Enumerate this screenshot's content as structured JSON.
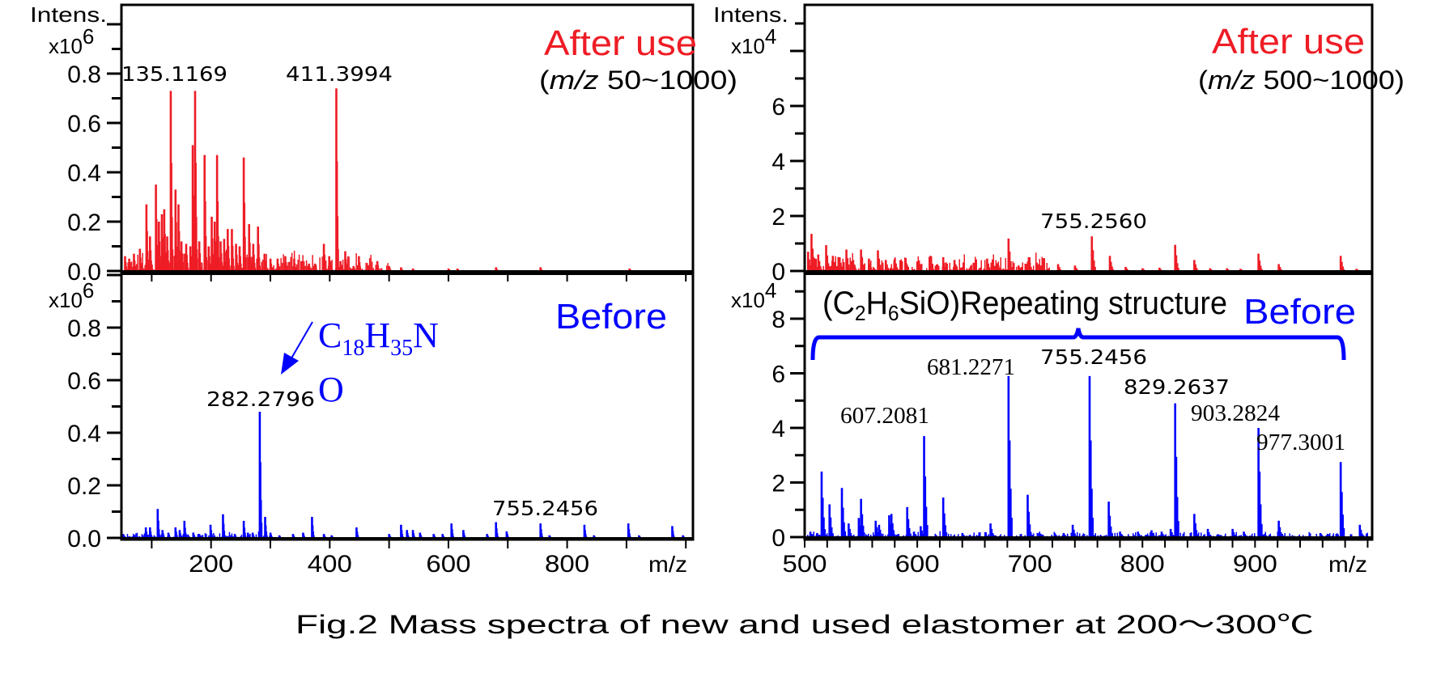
{
  "caption": "Fig.2 Mass spectra of new and used elastomer at 200～300℃",
  "colors": {
    "after": "#ee1c25",
    "before": "#0000ff",
    "axis": "#000000"
  },
  "labels": {
    "intens": "Intens.",
    "x10": "x10",
    "exp6": "6",
    "exp4": "4",
    "mz": "m/z",
    "after_use": "After use",
    "before": "Before",
    "range_left_open": "(",
    "range_mz": "m/z",
    "range_left_rest": " 50~1000)",
    "range_right_rest": " 500~1000)",
    "formula_c": "C",
    "formula_18": "18",
    "formula_h": "H",
    "formula_35": "35",
    "formula_n": "N",
    "formula_o": "O",
    "repeat_open": "(C",
    "repeat_2": "2",
    "repeat_h": "H",
    "repeat_6": "6",
    "repeat_rest": "SiO)Repeating structure"
  },
  "chart_data": [
    {
      "type": "bar",
      "panel": "top-left",
      "title": "After use",
      "subtitle": "(m/z 50~1000)",
      "xlabel": "m/z",
      "ylabel": "Intens. x10^6",
      "xlim": [
        49,
        1012
      ],
      "ylim": [
        0,
        1.0
      ],
      "x_ticks": [
        100,
        200,
        300,
        400,
        500,
        600,
        700,
        800,
        900,
        1000
      ],
      "x_tick_labels": [],
      "y_ticks": [
        0,
        0.1,
        0.2,
        0.3,
        0.4,
        0.5,
        0.6,
        0.7,
        0.8,
        0.9,
        1.0
      ],
      "y_tick_labels": [
        {
          "v": 0,
          "t": "0.0"
        },
        {
          "v": 0.2,
          "t": "0.2"
        },
        {
          "v": 0.4,
          "t": "0.4"
        },
        {
          "v": 0.6,
          "t": "0.6"
        },
        {
          "v": 0.8,
          "t": "0.8"
        }
      ],
      "color": "#ee1c25",
      "noise_level": 0.04,
      "noise_range": [
        55,
        500
      ],
      "peaks": [
        [
          55,
          0.06
        ],
        [
          62,
          0.05
        ],
        [
          70,
          0.07
        ],
        [
          80,
          0.09
        ],
        [
          91,
          0.27
        ],
        [
          97,
          0.14
        ],
        [
          107,
          0.35
        ],
        [
          112,
          0.2
        ],
        [
          117,
          0.23
        ],
        [
          121,
          0.25
        ],
        [
          126,
          0.14
        ],
        [
          132,
          0.73
        ],
        [
          140,
          0.33
        ],
        [
          145,
          0.27
        ],
        [
          150,
          0.12
        ],
        [
          158,
          0.11
        ],
        [
          165,
          0.1
        ],
        [
          169,
          0.51
        ],
        [
          173,
          0.73
        ],
        [
          180,
          0.12
        ],
        [
          189,
          0.47
        ],
        [
          196,
          0.1
        ],
        [
          201,
          0.22
        ],
        [
          206,
          0.2
        ],
        [
          210,
          0.47
        ],
        [
          216,
          0.12
        ],
        [
          222,
          0.13
        ],
        [
          228,
          0.17
        ],
        [
          235,
          0.17
        ],
        [
          242,
          0.11
        ],
        [
          248,
          0.1
        ],
        [
          255,
          0.46
        ],
        [
          264,
          0.19
        ],
        [
          271,
          0.11
        ],
        [
          279,
          0.18
        ],
        [
          290,
          0.07
        ],
        [
          300,
          0.05
        ],
        [
          312,
          0.05
        ],
        [
          325,
          0.06
        ],
        [
          340,
          0.05
        ],
        [
          352,
          0.04
        ],
        [
          365,
          0.03
        ],
        [
          375,
          0.03
        ],
        [
          390,
          0.11
        ],
        [
          399,
          0.06
        ],
        [
          411,
          0.74
        ],
        [
          418,
          0.04
        ],
        [
          426,
          0.08
        ],
        [
          440,
          0.02
        ],
        [
          449,
          0.06
        ],
        [
          465,
          0.02
        ],
        [
          480,
          0.04
        ],
        [
          500,
          0.02
        ],
        [
          520,
          0.015
        ],
        [
          540,
          0.01
        ],
        [
          600,
          0.01
        ],
        [
          615,
          0.01
        ],
        [
          680,
          0.015
        ],
        [
          755,
          0.015
        ],
        [
          905,
          0.01
        ]
      ],
      "annotations": [
        {
          "mz": 135.1169,
          "text": "135.1169"
        },
        {
          "mz": 411.3994,
          "text": "411.3994"
        }
      ]
    },
    {
      "type": "bar",
      "panel": "bottom-left",
      "title": "Before",
      "xlabel": "m/z",
      "ylabel": "x10^6",
      "xlim": [
        49,
        1012
      ],
      "ylim": [
        0,
        1.0
      ],
      "x_ticks": [
        100,
        200,
        300,
        400,
        500,
        600,
        700,
        800,
        900,
        1000
      ],
      "x_tick_labels": [
        {
          "v": 200,
          "t": "200"
        },
        {
          "v": 400,
          "t": "400"
        },
        {
          "v": 600,
          "t": "600"
        },
        {
          "v": 800,
          "t": "800"
        }
      ],
      "y_ticks": [
        0,
        0.1,
        0.2,
        0.3,
        0.4,
        0.5,
        0.6,
        0.7,
        0.8,
        0.9,
        1.0
      ],
      "y_tick_labels": [
        {
          "v": 0,
          "t": "0.0"
        },
        {
          "v": 0.2,
          "t": "0.2"
        },
        {
          "v": 0.4,
          "t": "0.4"
        },
        {
          "v": 0.6,
          "t": "0.6"
        },
        {
          "v": 0.8,
          "t": "0.8"
        }
      ],
      "color": "#0000ff",
      "noise_level": 0.012,
      "noise_range": [
        52,
        300
      ],
      "peaks": [
        [
          52,
          0.015
        ],
        [
          70,
          0.01
        ],
        [
          90,
          0.04
        ],
        [
          97,
          0.04
        ],
        [
          110,
          0.11
        ],
        [
          118,
          0.03
        ],
        [
          128,
          0.02
        ],
        [
          140,
          0.04
        ],
        [
          147,
          0.03
        ],
        [
          155,
          0.065
        ],
        [
          170,
          0.02
        ],
        [
          180,
          0.015
        ],
        [
          199,
          0.05
        ],
        [
          220,
          0.09
        ],
        [
          240,
          0.015
        ],
        [
          255,
          0.065
        ],
        [
          262,
          0.02
        ],
        [
          270,
          0.02
        ],
        [
          282,
          0.48
        ],
        [
          291,
          0.08
        ],
        [
          300,
          0.02
        ],
        [
          315,
          0.01
        ],
        [
          338,
          0.015
        ],
        [
          355,
          0.02
        ],
        [
          370,
          0.08
        ],
        [
          390,
          0.015
        ],
        [
          403,
          0.01
        ],
        [
          445,
          0.04
        ],
        [
          500,
          0.015
        ],
        [
          520,
          0.05
        ],
        [
          530,
          0.03
        ],
        [
          540,
          0.03
        ],
        [
          552,
          0.02
        ],
        [
          575,
          0.015
        ],
        [
          590,
          0.015
        ],
        [
          605,
          0.055
        ],
        [
          625,
          0.03
        ],
        [
          665,
          0.015
        ],
        [
          680,
          0.06
        ],
        [
          698,
          0.025
        ],
        [
          755,
          0.055
        ],
        [
          770,
          0.01
        ],
        [
          829,
          0.05
        ],
        [
          845,
          0.01
        ],
        [
          903,
          0.055
        ],
        [
          921,
          0.01
        ],
        [
          977,
          0.045
        ],
        [
          995,
          0.01
        ]
      ],
      "annotations": [
        {
          "mz": 282.2796,
          "text": "282.2796"
        },
        {
          "mz": 755.2456,
          "text": "755.2456"
        }
      ]
    },
    {
      "type": "bar",
      "panel": "top-right",
      "title": "After use",
      "subtitle": "(m/z 500~1000)",
      "xlabel": "m/z",
      "ylabel": "Intens. x10^4",
      "xlim": [
        500,
        1004
      ],
      "ylim": [
        0,
        9
      ],
      "x_ticks": [],
      "x_tick_labels": [],
      "y_ticks": [
        0,
        1,
        2,
        3,
        4,
        5,
        6,
        7,
        8,
        9
      ],
      "y_tick_labels": [
        {
          "v": 0,
          "t": "0"
        },
        {
          "v": 2,
          "t": "2"
        },
        {
          "v": 4,
          "t": "4"
        },
        {
          "v": 6,
          "t": "6"
        }
      ],
      "color": "#ee1c25",
      "noise_level": 0.35,
      "noise_range": [
        500,
        720
      ],
      "peaks": [
        [
          503,
          0.7
        ],
        [
          506,
          1.35
        ],
        [
          512,
          0.6
        ],
        [
          519,
          0.94
        ],
        [
          525,
          0.55
        ],
        [
          531,
          0.5
        ],
        [
          537,
          0.78
        ],
        [
          543,
          0.4
        ],
        [
          550,
          0.78
        ],
        [
          557,
          0.45
        ],
        [
          565,
          0.75
        ],
        [
          572,
          0.4
        ],
        [
          580,
          0.45
        ],
        [
          590,
          0.3
        ],
        [
          600,
          0.35
        ],
        [
          612,
          0.3
        ],
        [
          623,
          0.5
        ],
        [
          633,
          0.4
        ],
        [
          650,
          0.3
        ],
        [
          662,
          0.45
        ],
        [
          672,
          0.2
        ],
        [
          681,
          1.18
        ],
        [
          690,
          0.2
        ],
        [
          699,
          0.5
        ],
        [
          710,
          0.2
        ],
        [
          725,
          0.25
        ],
        [
          740,
          0.2
        ],
        [
          755,
          1.26
        ],
        [
          771,
          0.55
        ],
        [
          785,
          0.15
        ],
        [
          800,
          0.1
        ],
        [
          815,
          0.12
        ],
        [
          829,
          0.95
        ],
        [
          846,
          0.4
        ],
        [
          860,
          0.1
        ],
        [
          875,
          0.1
        ],
        [
          887,
          0.08
        ],
        [
          903,
          0.63
        ],
        [
          921,
          0.25
        ],
        [
          976,
          0.55
        ],
        [
          990,
          0.08
        ]
      ],
      "annotations": [
        {
          "mz": 755.256,
          "text": "755.2560"
        }
      ]
    },
    {
      "type": "bar",
      "panel": "bottom-right",
      "title": "Before",
      "xlabel": "m/z",
      "ylabel": "x10^4",
      "xlim": [
        500,
        1004
      ],
      "ylim": [
        0,
        9
      ],
      "x_ticks": [
        500,
        520,
        540,
        560,
        580,
        600,
        620,
        640,
        660,
        680,
        700,
        720,
        740,
        760,
        780,
        800,
        820,
        840,
        860,
        880,
        900,
        920,
        940,
        960,
        980,
        1000
      ],
      "x_tick_labels": [
        {
          "v": 500,
          "t": "500"
        },
        {
          "v": 600,
          "t": "600"
        },
        {
          "v": 700,
          "t": "700"
        },
        {
          "v": 800,
          "t": "800"
        },
        {
          "v": 900,
          "t": "900"
        }
      ],
      "y_ticks": [
        0,
        1,
        2,
        3,
        4,
        5,
        6,
        7,
        8,
        9
      ],
      "y_tick_labels": [
        {
          "v": 0,
          "t": "0"
        },
        {
          "v": 2,
          "t": "2"
        },
        {
          "v": 4,
          "t": "4"
        },
        {
          "v": 6,
          "t": "6"
        },
        {
          "v": 8,
          "t": "8"
        }
      ],
      "color": "#0000ff",
      "noise_level": 0.1,
      "noise_range": [
        500,
        1000
      ],
      "peaks": [
        [
          505,
          0.2
        ],
        [
          511,
          0.15
        ],
        [
          515,
          2.4
        ],
        [
          522,
          1.2
        ],
        [
          533,
          1.8
        ],
        [
          539,
          0.5
        ],
        [
          548,
          0.7
        ],
        [
          550,
          1.4
        ],
        [
          563,
          0.6
        ],
        [
          566,
          0.45
        ],
        [
          575,
          0.8
        ],
        [
          577,
          0.85
        ],
        [
          591,
          1.1
        ],
        [
          597,
          0.2
        ],
        [
          603,
          0.4
        ],
        [
          606,
          3.7
        ],
        [
          623,
          1.45
        ],
        [
          640,
          0.15
        ],
        [
          665,
          0.5
        ],
        [
          681,
          5.9
        ],
        [
          698,
          1.55
        ],
        [
          708,
          0.15
        ],
        [
          722,
          0.15
        ],
        [
          730,
          0.15
        ],
        [
          738,
          0.45
        ],
        [
          753,
          5.9
        ],
        [
          770,
          1.3
        ],
        [
          780,
          0.2
        ],
        [
          796,
          0.2
        ],
        [
          808,
          0.25
        ],
        [
          817,
          0.2
        ],
        [
          825,
          0.3
        ],
        [
          829,
          4.9
        ],
        [
          846,
          0.85
        ],
        [
          858,
          0.3
        ],
        [
          880,
          0.3
        ],
        [
          890,
          0.2
        ],
        [
          903,
          4.0
        ],
        [
          921,
          0.6
        ],
        [
          958,
          0.15
        ],
        [
          976,
          2.75
        ],
        [
          993,
          0.45
        ]
      ],
      "annotations": [
        {
          "mz": 607.2081,
          "text": "607.2081"
        },
        {
          "mz": 681.2271,
          "text": "681.2271"
        },
        {
          "mz": 755.2456,
          "text": "755.2456"
        },
        {
          "mz": 829.2637,
          "text": "829.2637"
        },
        {
          "mz": 903.2824,
          "text": "903.2824"
        },
        {
          "mz": 977.3001,
          "text": "977.3001"
        }
      ]
    }
  ]
}
